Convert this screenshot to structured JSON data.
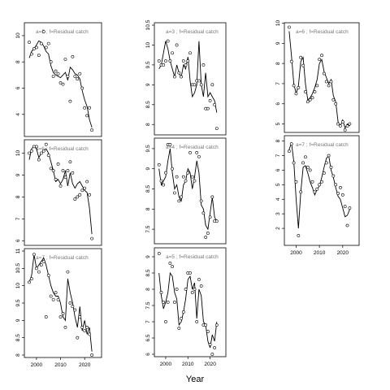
{
  "figure": {
    "xlabel": "Year"
  },
  "chart_data": [
    {
      "type": "line",
      "title": "a=5 ; f=Residual catch",
      "xlim": [
        1996,
        2026
      ],
      "ylim": [
        2.5,
        10.8
      ],
      "yticks": [
        4,
        6,
        8,
        10
      ],
      "xticks": [],
      "points_x": [
        1997,
        1998,
        1999,
        2000,
        2001,
        2002,
        2003,
        2004,
        2005,
        2006,
        2007,
        2008,
        2009,
        2010,
        2011,
        2012,
        2013,
        2014,
        2015,
        2016,
        2017,
        2018,
        2019,
        2020,
        2021,
        2022,
        2023
      ],
      "points_y": [
        9.5,
        8.6,
        9.0,
        9.1,
        8.5,
        9.4,
        10.3,
        9.1,
        9.4,
        8.0,
        6.9,
        7.3,
        7.1,
        6.4,
        6.3,
        8.2,
        6.9,
        5.0,
        8.4,
        6.9,
        6.7,
        7.1,
        6.0,
        4.5,
        3.9,
        4.5,
        2.8
      ],
      "line_y": [
        8.3,
        8.8,
        9.0,
        9.3,
        9.6,
        9.5,
        9.2,
        8.8,
        8.6,
        7.7,
        7.2,
        7.0,
        6.9,
        6.8,
        7.0,
        7.2,
        6.6,
        7.6,
        7.4,
        7.1,
        7.0,
        6.7,
        5.8,
        5.1,
        4.6,
        3.6,
        3.0
      ]
    },
    {
      "type": "line",
      "title": "a=6 ; f=Residual catch",
      "xlim": [
        1996,
        2026
      ],
      "ylim": [
        5.9,
        10.5
      ],
      "yticks": [
        6,
        7,
        8,
        9,
        10,
        11
      ],
      "xticks": [],
      "points_x": [
        1997,
        1998,
        1999,
        2000,
        2001,
        2002,
        2003,
        2004,
        2005,
        2006,
        2007,
        2008,
        2009,
        2010,
        2011,
        2012,
        2013,
        2014,
        2015,
        2016,
        2017,
        2018,
        2019,
        2020,
        2021,
        2022,
        2023
      ],
      "points_y": [
        10.0,
        10.1,
        10.3,
        10.3,
        9.7,
        10.0,
        10.1,
        10.4,
        9.9,
        9.3,
        9.2,
        8.8,
        9.5,
        8.5,
        9.2,
        8.9,
        9.2,
        9.6,
        9.1,
        7.9,
        8.0,
        8.1,
        8.3,
        8.4,
        8.7,
        8.1,
        6.1
      ],
      "line_y": [
        9.7,
        10.2,
        10.3,
        10.2,
        9.8,
        10.0,
        10.1,
        10.2,
        10.0,
        9.6,
        9.2,
        8.7,
        8.8,
        8.6,
        8.8,
        9.2,
        8.5,
        9.1,
        8.6,
        8.4,
        8.6,
        8.7,
        8.5,
        8.3,
        8.2,
        7.5,
        6.3
      ]
    },
    {
      "type": "line",
      "title": "a=7 ; f=Residual catch",
      "xlim": [
        1996,
        2026
      ],
      "ylim": [
        8.0,
        11.0
      ],
      "yticks": [
        8.0,
        8.5,
        9.0,
        9.5,
        10.0,
        10.5,
        11.0
      ],
      "xticks": [
        2000,
        2010,
        2020
      ],
      "points_x": [
        1997,
        1998,
        1999,
        2000,
        2001,
        2002,
        2003,
        2004,
        2005,
        2006,
        2007,
        2008,
        2009,
        2010,
        2011,
        2012,
        2013,
        2014,
        2015,
        2016,
        2017,
        2018,
        2019,
        2020,
        2021,
        2022,
        2023
      ],
      "points_y": [
        10.1,
        10.2,
        10.9,
        10.5,
        10.4,
        10.6,
        10.7,
        9.1,
        10.3,
        9.7,
        9.6,
        9.8,
        9.6,
        9.1,
        9.2,
        8.8,
        10.4,
        9.5,
        9.4,
        9.3,
        8.5,
        9.1,
        8.8,
        8.7,
        8.8,
        8.6,
        8.0
      ],
      "line_y": [
        10.1,
        10.3,
        10.9,
        10.5,
        10.6,
        10.7,
        10.8,
        10.6,
        10.3,
        10.0,
        9.8,
        9.7,
        9.7,
        9.5,
        9.1,
        9.0,
        10.2,
        9.8,
        9.5,
        9.1,
        8.8,
        9.4,
        8.7,
        9.0,
        8.6,
        8.8,
        8.1
      ]
    },
    {
      "type": "line",
      "title": "a=3 ; f=Residual catch",
      "xlim": [
        1996,
        2026
      ],
      "ylim": [
        7.8,
        10.5
      ],
      "yticks": [
        8.0,
        8.5,
        9.0,
        9.5,
        10.0,
        10.5
      ],
      "xticks": [],
      "points_x": [
        1997,
        1998,
        1999,
        2000,
        2001,
        2002,
        2003,
        2004,
        2005,
        2006,
        2007,
        2008,
        2009,
        2010,
        2011,
        2012,
        2013,
        2014,
        2015,
        2016,
        2017,
        2018,
        2019,
        2020,
        2021,
        2022,
        2023
      ],
      "points_y": [
        9.6,
        9.5,
        9.5,
        9.6,
        10.1,
        9.6,
        9.8,
        9.2,
        10.0,
        9.3,
        9.2,
        9.6,
        9.5,
        9.6,
        9.8,
        9.0,
        9.0,
        9.1,
        9.1,
        9.0,
        9.5,
        8.4,
        8.4,
        8.6,
        9.0,
        8.5,
        7.9
      ],
      "line_y": [
        9.4,
        9.5,
        9.8,
        10.1,
        9.9,
        9.6,
        9.4,
        9.2,
        9.5,
        9.3,
        9.2,
        9.5,
        9.4,
        9.7,
        9.1,
        8.7,
        8.8,
        9.0,
        10.1,
        9.0,
        8.7,
        9.3,
        8.7,
        8.8,
        8.7,
        8.6,
        8.3
      ]
    },
    {
      "type": "line",
      "title": "a=4 ; f=Residual catch",
      "xlim": [
        1996,
        2026
      ],
      "ylim": [
        7.2,
        9.7
      ],
      "yticks": [
        7.5,
        8.0,
        8.5,
        9.0,
        9.5
      ],
      "xticks": [],
      "points_x": [
        1997,
        1998,
        1999,
        2000,
        2001,
        2002,
        2003,
        2004,
        2005,
        2006,
        2007,
        2008,
        2009,
        2010,
        2011,
        2012,
        2013,
        2014,
        2015,
        2016,
        2017,
        2018,
        2019,
        2020,
        2021,
        2022,
        2023
      ],
      "points_y": [
        9.1,
        8.7,
        8.6,
        8.9,
        9.6,
        9.6,
        9.0,
        8.4,
        8.8,
        8.2,
        8.3,
        8.8,
        8.7,
        8.9,
        9.4,
        8.8,
        8.7,
        9.4,
        9.3,
        8.2,
        7.9,
        7.3,
        7.4,
        7.8,
        8.3,
        7.7,
        7.7
      ],
      "line_y": [
        9.0,
        8.6,
        8.7,
        8.8,
        9.2,
        9.5,
        8.9,
        8.5,
        8.6,
        8.3,
        8.2,
        8.6,
        8.7,
        9.0,
        8.9,
        8.5,
        8.8,
        9.2,
        8.9,
        8.1,
        8.0,
        7.6,
        7.5,
        7.9,
        8.3,
        7.8,
        7.7
      ]
    },
    {
      "type": "line",
      "title": "a=5 ; f=Residual catch",
      "xlim": [
        1996,
        2026
      ],
      "ylim": [
        6.0,
        9.2
      ],
      "yticks": [
        6.0,
        6.5,
        7.0,
        7.5,
        8.0,
        8.5,
        9.0
      ],
      "xticks": [
        2000,
        2010,
        2020
      ],
      "points_x": [
        1997,
        1998,
        1999,
        2000,
        2001,
        2002,
        2003,
        2004,
        2005,
        2006,
        2007,
        2008,
        2009,
        2010,
        2011,
        2012,
        2013,
        2014,
        2015,
        2016,
        2017,
        2018,
        2019,
        2020,
        2021,
        2022,
        2023
      ],
      "points_y": [
        9.1,
        7.9,
        7.6,
        7.0,
        7.6,
        8.8,
        8.7,
        7.6,
        8.0,
        6.8,
        7.1,
        7.3,
        8.0,
        8.5,
        8.5,
        7.9,
        8.0,
        7.0,
        8.3,
        8.1,
        6.9,
        6.9,
        6.7,
        6.3,
        6.0,
        6.2,
        6.9
      ],
      "line_y": [
        8.5,
        7.8,
        7.4,
        7.6,
        7.9,
        8.5,
        8.4,
        7.9,
        7.7,
        6.9,
        7.0,
        7.3,
        7.7,
        8.3,
        8.4,
        8.0,
        8.2,
        7.1,
        8.0,
        7.8,
        7.0,
        6.9,
        6.4,
        6.2,
        6.6,
        6.4,
        7.0
      ]
    },
    {
      "type": "line",
      "title": "a=6 ; f=Residual catch",
      "xlim": [
        1996,
        2026
      ],
      "ylim": [
        4.7,
        9.9
      ],
      "yticks": [
        5,
        6,
        7,
        8,
        9,
        10
      ],
      "xticks": [],
      "points_x": [
        1997,
        1998,
        1999,
        2000,
        2001,
        2002,
        2003,
        2004,
        2005,
        2006,
        2007,
        2008,
        2009,
        2010,
        2011,
        2012,
        2013,
        2014,
        2015,
        2016,
        2017,
        2018,
        2019,
        2020,
        2021,
        2022,
        2023
      ],
      "points_y": [
        9.8,
        8.1,
        6.9,
        6.5,
        6.8,
        8.3,
        7.9,
        6.6,
        6.1,
        6.2,
        6.3,
        6.6,
        6.9,
        8.2,
        8.4,
        7.5,
        7.1,
        6.9,
        7.1,
        6.2,
        6.0,
        5.0,
        4.9,
        5.1,
        4.7,
        4.9,
        5.0
      ],
      "line_y": [
        9.6,
        8.4,
        7.0,
        6.5,
        6.9,
        8.1,
        8.3,
        7.0,
        6.2,
        6.3,
        6.5,
        6.8,
        7.2,
        8.0,
        8.2,
        7.6,
        7.3,
        7.0,
        7.2,
        6.4,
        6.1,
        5.1,
        4.9,
        5.2,
        4.8,
        5.0,
        4.9
      ]
    },
    {
      "type": "line",
      "title": "a=7 ; f=Residual catch",
      "xlim": [
        1996,
        2026
      ],
      "ylim": [
        1.0,
        8.2
      ],
      "yticks": [
        2,
        3,
        4,
        5,
        6,
        7,
        8
      ],
      "xticks": [
        2000,
        2010,
        2020
      ],
      "points_x": [
        1997,
        1998,
        1999,
        2000,
        2001,
        2002,
        2003,
        2004,
        2005,
        2006,
        2007,
        2008,
        2009,
        2010,
        2011,
        2012,
        2013,
        2014,
        2015,
        2016,
        2017,
        2018,
        2019,
        2020,
        2021,
        2022,
        2023
      ],
      "points_y": [
        7.3,
        7.8,
        6.5,
        5.2,
        1.5,
        4.5,
        6.5,
        6.9,
        6.2,
        6.0,
        5.2,
        4.5,
        4.7,
        5.0,
        5.2,
        5.8,
        6.5,
        7.0,
        6.2,
        5.6,
        5.0,
        4.4,
        4.8,
        4.3,
        3.5,
        2.2,
        3.4
      ],
      "line_y": [
        7.4,
        7.9,
        6.6,
        4.0,
        2.0,
        4.5,
        6.2,
        6.3,
        5.8,
        5.2,
        4.8,
        4.3,
        4.7,
        4.9,
        5.5,
        6.2,
        6.8,
        7.0,
        6.0,
        5.5,
        4.8,
        4.2,
        4.0,
        3.4,
        2.8,
        2.9,
        3.3
      ]
    }
  ]
}
